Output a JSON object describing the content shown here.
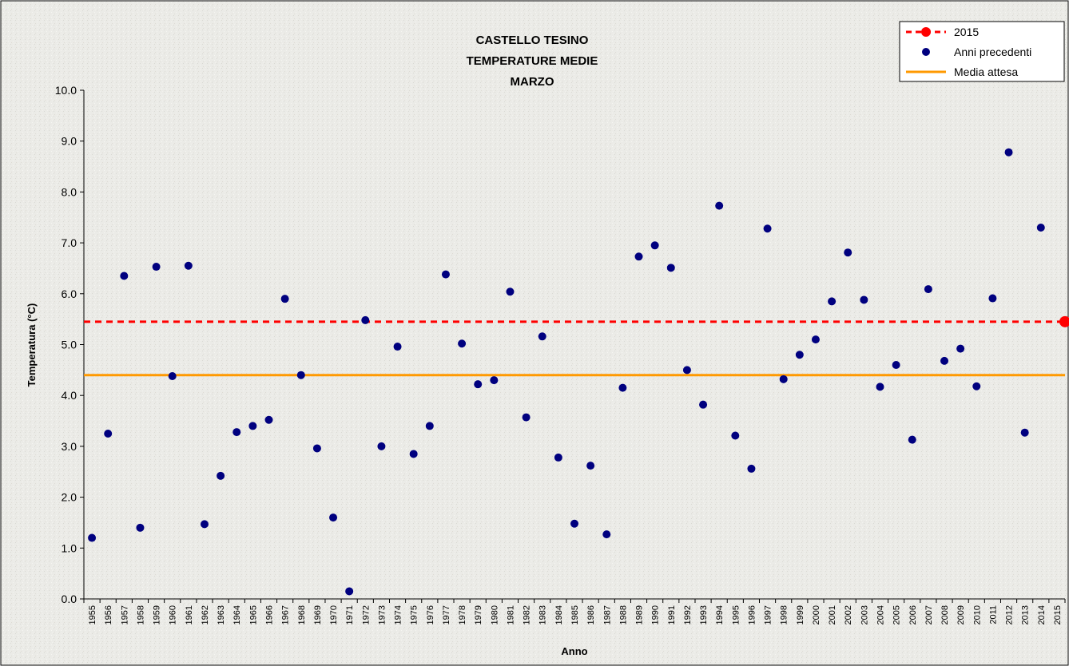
{
  "chart_data": {
    "type": "scatter",
    "title_lines": [
      "CASTELLO TESINO",
      "TEMPERATURE MEDIE",
      "MARZO"
    ],
    "xlabel": "Anno",
    "ylabel": "Temperatura (°C)",
    "ylim": [
      0,
      10
    ],
    "yticks": [
      "0.0",
      "1.0",
      "2.0",
      "3.0",
      "4.0",
      "5.0",
      "6.0",
      "7.0",
      "8.0",
      "9.0",
      "10.0"
    ],
    "x_categories": [
      "1955",
      "1956",
      "1957",
      "1958",
      "1959",
      "1960",
      "1961",
      "1962",
      "1963",
      "1964",
      "1965",
      "1966",
      "1967",
      "1968",
      "1969",
      "1970",
      "1971",
      "1972",
      "1973",
      "1974",
      "1975",
      "1976",
      "1977",
      "1978",
      "1979",
      "1980",
      "1981",
      "1982",
      "1983",
      "1984",
      "1985",
      "1986",
      "1987",
      "1988",
      "1989",
      "1990",
      "1991",
      "1992",
      "1993",
      "1994",
      "1995",
      "1996",
      "1997",
      "1998",
      "1999",
      "2000",
      "2001",
      "2002",
      "2003",
      "2004",
      "2005",
      "2006",
      "2007",
      "2008",
      "2009",
      "2010",
      "2011",
      "2012",
      "2013",
      "2014",
      "2015"
    ],
    "grid": false,
    "legend_position": "top-right",
    "series": [
      {
        "name": "Anni precedenti",
        "color": "#00007F",
        "marker": "circle",
        "x": [
          "1955",
          "1956",
          "1957",
          "1958",
          "1959",
          "1960",
          "1961",
          "1962",
          "1963",
          "1964",
          "1965",
          "1966",
          "1967",
          "1968",
          "1969",
          "1970",
          "1971",
          "1972",
          "1973",
          "1974",
          "1975",
          "1976",
          "1977",
          "1978",
          "1979",
          "1980",
          "1981",
          "1982",
          "1983",
          "1984",
          "1985",
          "1986",
          "1987",
          "1988",
          "1989",
          "1990",
          "1991",
          "1992",
          "1993",
          "1994",
          "1995",
          "1996",
          "1997",
          "1998",
          "1999",
          "2000",
          "2001",
          "2002",
          "2003",
          "2004",
          "2005",
          "2006",
          "2007",
          "2008",
          "2009",
          "2010",
          "2011",
          "2012",
          "2013",
          "2014"
        ],
        "values": [
          1.2,
          3.25,
          6.35,
          1.4,
          6.53,
          4.38,
          6.55,
          1.47,
          2.42,
          3.28,
          3.4,
          3.52,
          5.9,
          4.4,
          2.96,
          1.6,
          0.15,
          5.48,
          3.0,
          4.96,
          2.85,
          3.4,
          6.38,
          5.02,
          4.22,
          4.3,
          6.04,
          3.57,
          5.16,
          2.78,
          1.48,
          2.62,
          1.27,
          4.15,
          6.73,
          6.95,
          6.51,
          4.5,
          3.82,
          7.73,
          3.21,
          2.56,
          7.28,
          4.32,
          4.8,
          5.1,
          5.85,
          6.81,
          5.88,
          4.17,
          4.6,
          3.13,
          6.09,
          4.68,
          4.92,
          4.18,
          5.91,
          8.78,
          3.27,
          7.3
        ]
      },
      {
        "name": "2015",
        "color": "#FF0000",
        "marker": "circle-dashed-line",
        "x": [
          "2015"
        ],
        "values": [
          5.45
        ]
      },
      {
        "name": "Media attesa",
        "color": "#FF9900",
        "marker": "line",
        "values": [
          4.4
        ]
      }
    ]
  }
}
